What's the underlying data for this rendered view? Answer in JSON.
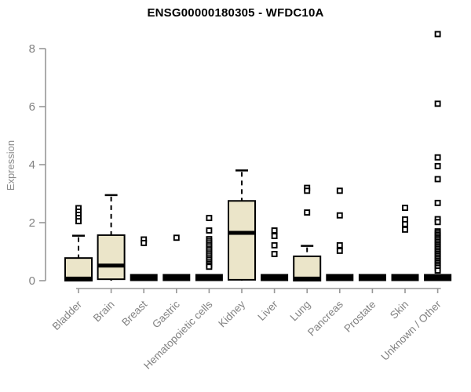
{
  "chart_data": {
    "type": "boxplot",
    "title": "ENSG00000180305 - WFDC10A",
    "ylabel": "Expression",
    "xlabel": "",
    "ylim": [
      0,
      8.6
    ],
    "yticks": [
      0,
      2,
      4,
      6,
      8
    ],
    "grid": false,
    "legend": "none",
    "colors": {
      "box_fill": "#ebe5c9",
      "box_stroke": "#000000",
      "axis_line": "#989898",
      "tick_label": "#828282",
      "title": "#000000"
    },
    "categories": [
      "Bladder",
      "Brain",
      "Breast",
      "Gastric",
      "Hematopoietic cells",
      "Kidney",
      "Liver",
      "Lung",
      "Pancreas",
      "Prostate",
      "Skin",
      "Unknown / Other"
    ],
    "series": [
      {
        "name": "Bladder",
        "q1": 0,
        "median": 0.07,
        "q3": 0.78,
        "whisker_low": 0,
        "whisker_high": 1.55,
        "outliers": [
          2.5,
          2.38,
          2.27,
          2.16,
          2.05
        ]
      },
      {
        "name": "Brain",
        "q1": 0.05,
        "median": 0.52,
        "q3": 1.57,
        "whisker_low": 0,
        "whisker_high": 2.95,
        "outliers": []
      },
      {
        "name": "Breast",
        "q1": 0,
        "median": 0,
        "q3": 0,
        "whisker_low": 0,
        "whisker_high": 0,
        "outliers": [
          1.42,
          1.3
        ]
      },
      {
        "name": "Gastric",
        "q1": 0,
        "median": 0,
        "q3": 0,
        "whisker_low": 0,
        "whisker_high": 0,
        "outliers": [
          1.48
        ]
      },
      {
        "name": "Hematopoietic cells",
        "q1": 0,
        "median": 0,
        "q3": 0,
        "whisker_low": 0,
        "whisker_high": 0,
        "outliers": [
          2.16,
          1.73,
          1.43,
          1.36,
          1.29,
          1.22,
          1.15,
          1.08,
          1.01,
          0.94,
          0.87,
          0.8,
          0.73,
          0.66,
          0.59,
          0.53,
          0.48
        ]
      },
      {
        "name": "Kidney",
        "q1": 0.03,
        "median": 1.65,
        "q3": 2.75,
        "whisker_low": 0,
        "whisker_high": 3.8,
        "outliers": []
      },
      {
        "name": "Liver",
        "q1": 0,
        "median": 0,
        "q3": 0,
        "whisker_low": 0,
        "whisker_high": 0,
        "outliers": [
          1.73,
          1.54,
          1.22,
          0.92
        ]
      },
      {
        "name": "Lung",
        "q1": 0,
        "median": 0.07,
        "q3": 0.84,
        "whisker_low": 0,
        "whisker_high": 1.2,
        "outliers": [
          3.2,
          3.1,
          2.35
        ]
      },
      {
        "name": "Pancreas",
        "q1": 0,
        "median": 0,
        "q3": 0,
        "whisker_low": 0,
        "whisker_high": 0,
        "outliers": [
          3.1,
          2.25,
          1.22,
          1.03
        ]
      },
      {
        "name": "Prostate",
        "q1": 0,
        "median": 0,
        "q3": 0,
        "whisker_low": 0,
        "whisker_high": 0,
        "outliers": []
      },
      {
        "name": "Skin",
        "q1": 0,
        "median": 0,
        "q3": 0,
        "whisker_low": 0,
        "whisker_high": 0,
        "outliers": [
          2.51,
          2.11,
          1.95,
          1.76
        ]
      },
      {
        "name": "Unknown / Other",
        "q1": 0,
        "median": 0,
        "q3": 0,
        "whisker_low": 0,
        "whisker_high": 0,
        "outliers": [
          8.5,
          6.1,
          4.25,
          3.95,
          3.5,
          2.68,
          2.12,
          2.02,
          1.7,
          1.64,
          1.58,
          1.52,
          1.46,
          1.4,
          1.34,
          1.28,
          1.22,
          1.16,
          1.1,
          1.04,
          0.98,
          0.92,
          0.86,
          0.8,
          0.74,
          0.68,
          0.62,
          0.56,
          0.5,
          0.44,
          0.35
        ]
      }
    ]
  }
}
